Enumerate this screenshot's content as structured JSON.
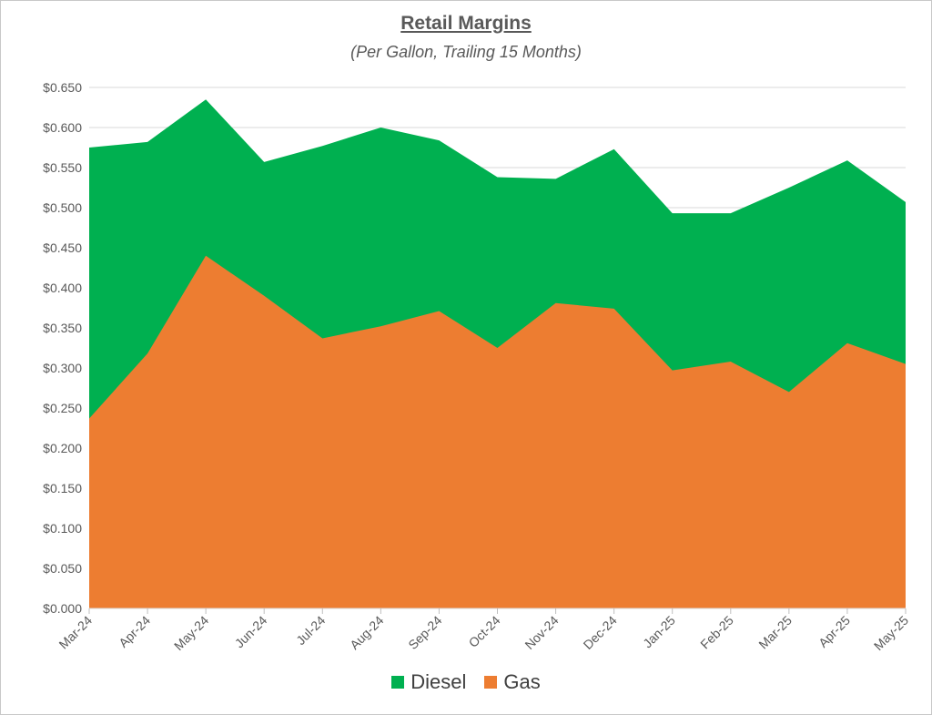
{
  "chart_data": {
    "type": "area",
    "stacked": false,
    "title": "Retail Margins",
    "subtitle": "(Per Gallon, Trailing 15 Months)",
    "categories": [
      "Mar-24",
      "Apr-24",
      "May-24",
      "Jun-24",
      "Jul-24",
      "Aug-24",
      "Sep-24",
      "Oct-24",
      "Nov-24",
      "Dec-24",
      "Jan-25",
      "Feb-25",
      "Mar-25",
      "Apr-25",
      "May-25"
    ],
    "series": [
      {
        "name": "Diesel",
        "color": "#00b050",
        "values": [
          0.575,
          0.582,
          0.635,
          0.557,
          0.577,
          0.6,
          0.584,
          0.538,
          0.536,
          0.573,
          0.493,
          0.493,
          0.525,
          0.559,
          0.507
        ]
      },
      {
        "name": "Gas",
        "color": "#ed7d31",
        "values": [
          0.237,
          0.318,
          0.44,
          0.39,
          0.337,
          0.352,
          0.371,
          0.325,
          0.381,
          0.374,
          0.297,
          0.308,
          0.27,
          0.331,
          0.305
        ]
      }
    ],
    "ylim": [
      0,
      0.65
    ],
    "yticks": [
      "$0.000",
      "$0.050",
      "$0.100",
      "$0.150",
      "$0.200",
      "$0.250",
      "$0.300",
      "$0.350",
      "$0.400",
      "$0.450",
      "$0.500",
      "$0.550",
      "$0.600",
      "$0.650"
    ],
    "grid": true,
    "legend_position": "bottom"
  }
}
